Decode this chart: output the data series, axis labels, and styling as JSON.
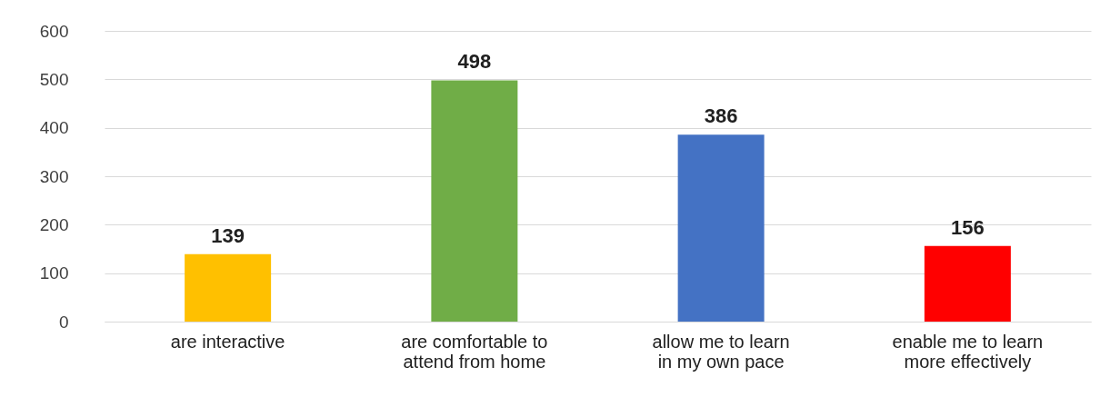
{
  "chart_data": {
    "type": "bar",
    "categories": [
      "are interactive",
      "are comfortable to attend from home",
      "allow me to learn in my own pace",
      "enable me to learn more effectively"
    ],
    "values": [
      139,
      498,
      386,
      156
    ],
    "colors": [
      "#ffc000",
      "#70ad47",
      "#4472c4",
      "#ff0000"
    ],
    "ylim": [
      0,
      600
    ],
    "yticks": [
      0,
      100,
      200,
      300,
      400,
      500,
      600
    ],
    "grid": "y",
    "data_labels": true
  }
}
